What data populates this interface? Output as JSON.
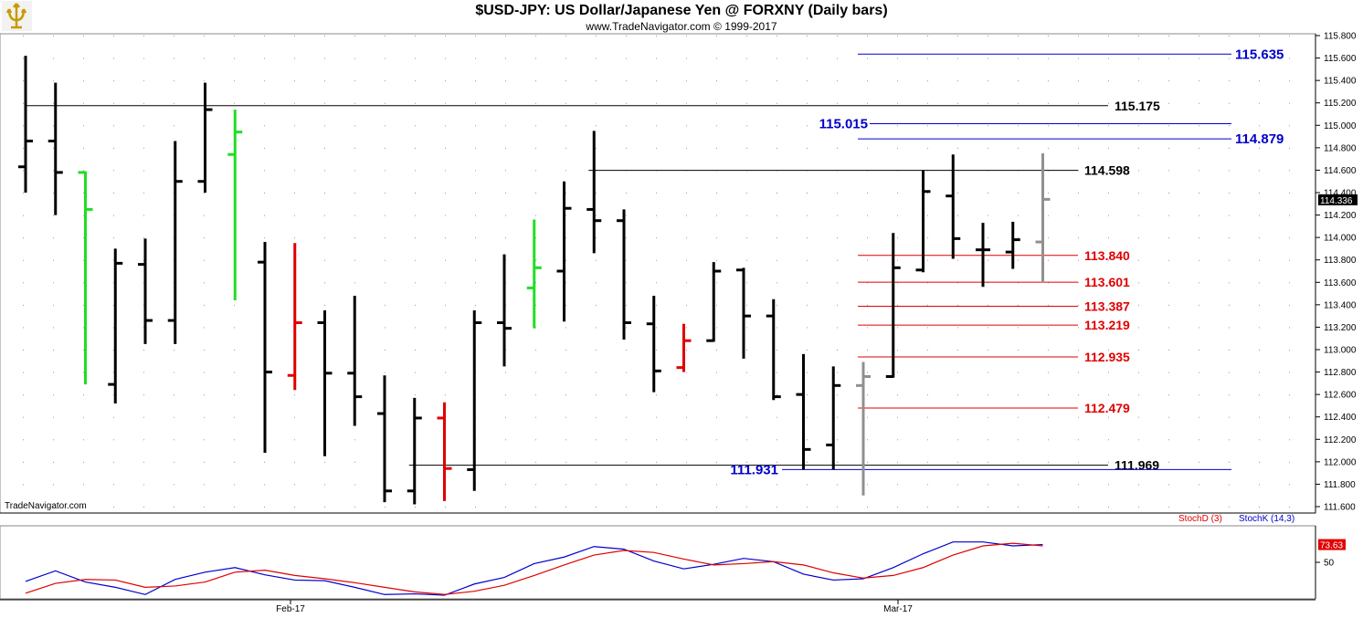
{
  "header": {
    "title": "$USD-JPY:  US Dollar/Japanese Yen @ FORXNY  (Daily bars)",
    "subtitle": "www.TradeNavigator.com © 1999-2017",
    "watermark": "TradeNavigator.com"
  },
  "chart_data": [
    {
      "type": "ohlc",
      "grid": true,
      "ylim": [
        111.6,
        115.8
      ],
      "y_ticks": [
        "111.600",
        "111.800",
        "112.000",
        "112.200",
        "112.400",
        "112.600",
        "112.800",
        "113.000",
        "113.200",
        "113.400",
        "113.600",
        "113.800",
        "114.000",
        "114.200",
        "114.400",
        "114.600",
        "114.800",
        "115.000",
        "115.200",
        "115.400",
        "115.600",
        "115.800"
      ],
      "last_price_label": "114.336",
      "x_labels": [
        "Feb-17",
        "Mar-17"
      ],
      "colors": {
        "up": "#000000",
        "red": "#e00000",
        "green": "#22dd22",
        "gray": "#909090",
        "level_black": "#000000",
        "level_blue": "#0000cc",
        "level_red": "#e00000"
      },
      "bars": [
        {
          "o": 114.63,
          "h": 115.62,
          "l": 114.4,
          "c": 114.86,
          "color": "black"
        },
        {
          "o": 114.86,
          "h": 115.38,
          "l": 114.2,
          "c": 114.58,
          "color": "black"
        },
        {
          "o": 114.58,
          "h": 114.59,
          "l": 112.69,
          "c": 114.25,
          "color": "green"
        },
        {
          "o": 112.69,
          "h": 113.9,
          "l": 112.52,
          "c": 113.77,
          "color": "black"
        },
        {
          "o": 113.76,
          "h": 113.99,
          "l": 113.05,
          "c": 113.26,
          "color": "black"
        },
        {
          "o": 113.26,
          "h": 114.86,
          "l": 113.05,
          "c": 114.5,
          "color": "black"
        },
        {
          "o": 114.5,
          "h": 115.38,
          "l": 114.4,
          "c": 115.14,
          "color": "black"
        },
        {
          "o": 114.74,
          "h": 115.14,
          "l": 113.44,
          "c": 114.94,
          "color": "green"
        },
        {
          "o": 113.78,
          "h": 113.96,
          "l": 112.08,
          "c": 112.8,
          "color": "black"
        },
        {
          "o": 112.77,
          "h": 113.95,
          "l": 112.64,
          "c": 113.24,
          "color": "red"
        },
        {
          "o": 113.24,
          "h": 113.35,
          "l": 112.05,
          "c": 112.79,
          "color": "black"
        },
        {
          "o": 112.79,
          "h": 113.48,
          "l": 112.32,
          "c": 112.58,
          "color": "black"
        },
        {
          "o": 112.43,
          "h": 112.77,
          "l": 111.64,
          "c": 111.74,
          "color": "black"
        },
        {
          "o": 111.74,
          "h": 112.57,
          "l": 111.62,
          "c": 112.39,
          "color": "black"
        },
        {
          "o": 112.39,
          "h": 112.53,
          "l": 111.65,
          "c": 111.94,
          "color": "red"
        },
        {
          "o": 111.93,
          "h": 113.35,
          "l": 111.74,
          "c": 113.24,
          "color": "black"
        },
        {
          "o": 113.24,
          "h": 113.85,
          "l": 112.85,
          "c": 113.19,
          "color": "black"
        },
        {
          "o": 113.55,
          "h": 114.16,
          "l": 113.19,
          "c": 113.73,
          "color": "green"
        },
        {
          "o": 113.7,
          "h": 114.5,
          "l": 113.25,
          "c": 114.26,
          "color": "black"
        },
        {
          "o": 114.25,
          "h": 114.95,
          "l": 113.86,
          "c": 114.15,
          "color": "black"
        },
        {
          "o": 114.15,
          "h": 114.25,
          "l": 113.09,
          "c": 113.24,
          "color": "black"
        },
        {
          "o": 113.23,
          "h": 113.48,
          "l": 112.62,
          "c": 112.81,
          "color": "black"
        },
        {
          "o": 112.84,
          "h": 113.23,
          "l": 112.8,
          "c": 113.08,
          "color": "red"
        },
        {
          "o": 113.08,
          "h": 113.78,
          "l": 113.07,
          "c": 113.7,
          "color": "black"
        },
        {
          "o": 113.71,
          "h": 113.73,
          "l": 112.92,
          "c": 113.3,
          "color": "black"
        },
        {
          "o": 113.3,
          "h": 113.45,
          "l": 112.55,
          "c": 112.58,
          "color": "black"
        },
        {
          "o": 112.6,
          "h": 112.96,
          "l": 111.93,
          "c": 112.11,
          "color": "black"
        },
        {
          "o": 112.15,
          "h": 112.85,
          "l": 111.93,
          "c": 112.68,
          "color": "black"
        },
        {
          "o": 112.68,
          "h": 112.89,
          "l": 111.7,
          "c": 112.76,
          "color": "gray"
        },
        {
          "o": 112.76,
          "h": 114.04,
          "l": 112.75,
          "c": 113.73,
          "color": "black"
        },
        {
          "o": 113.71,
          "h": 114.6,
          "l": 113.69,
          "c": 114.41,
          "color": "black"
        },
        {
          "o": 114.37,
          "h": 114.74,
          "l": 113.81,
          "c": 113.99,
          "color": "black"
        },
        {
          "o": 113.89,
          "h": 114.13,
          "l": 113.56,
          "c": 113.89,
          "color": "black"
        },
        {
          "o": 113.87,
          "h": 114.14,
          "l": 113.72,
          "c": 113.98,
          "color": "black"
        },
        {
          "o": 113.96,
          "h": 114.75,
          "l": 113.6,
          "c": 114.34,
          "color": "gray"
        }
      ],
      "levels": [
        {
          "value": 115.635,
          "label": "115.635",
          "color": "blue",
          "from_bar": 28
        },
        {
          "value": 115.175,
          "label": "115.175",
          "color": "black",
          "from_bar": 0
        },
        {
          "value": 115.015,
          "label": "115.015",
          "color": "blue",
          "from_bar": 28
        },
        {
          "value": 114.879,
          "label": "114.879",
          "color": "blue",
          "from_bar": 28
        },
        {
          "value": 114.598,
          "label": "114.598",
          "color": "black",
          "from_bar": 19
        },
        {
          "value": 113.84,
          "label": "113.840",
          "color": "red",
          "from_bar": 28
        },
        {
          "value": 113.601,
          "label": "113.601",
          "color": "red",
          "from_bar": 28
        },
        {
          "value": 113.387,
          "label": "113.387",
          "color": "red",
          "from_bar": 28
        },
        {
          "value": 113.219,
          "label": "113.219",
          "color": "red",
          "from_bar": 28
        },
        {
          "value": 112.935,
          "label": "112.935",
          "color": "red",
          "from_bar": 28
        },
        {
          "value": 112.479,
          "label": "112.479",
          "color": "red",
          "from_bar": 28
        },
        {
          "value": 111.969,
          "label": "111.969",
          "color": "black",
          "from_bar": 13
        },
        {
          "value": 111.931,
          "label": "111.931",
          "color": "blue",
          "from_bar": 26
        }
      ]
    },
    {
      "type": "line",
      "legend": [
        {
          "name": "StochD (3)",
          "color": "#e00000"
        },
        {
          "name": "StochK (14,3)",
          "color": "#0000cc"
        }
      ],
      "y_ticks": [
        "50"
      ],
      "last_value_label": "73.63",
      "ylim": [
        0,
        100
      ],
      "series": [
        {
          "name": "StochK (14,3)",
          "color": "#0000cc",
          "values": [
            21,
            37,
            20,
            12,
            1,
            24,
            35,
            42,
            31,
            23,
            22,
            12,
            1,
            2,
            0,
            17,
            27,
            48,
            58,
            74,
            70,
            52,
            40,
            47,
            56,
            51,
            32,
            23,
            25,
            42,
            63,
            81,
            81,
            75,
            77
          ]
        },
        {
          "name": "StochD (3)",
          "color": "#e00000",
          "values": [
            3,
            18,
            24,
            23,
            12,
            14,
            20,
            35,
            38,
            30,
            25,
            19,
            12,
            5,
            1,
            6,
            15,
            30,
            46,
            61,
            68,
            65,
            55,
            46,
            48,
            51,
            46,
            34,
            26,
            30,
            42,
            61,
            75,
            79,
            75
          ]
        }
      ]
    }
  ]
}
